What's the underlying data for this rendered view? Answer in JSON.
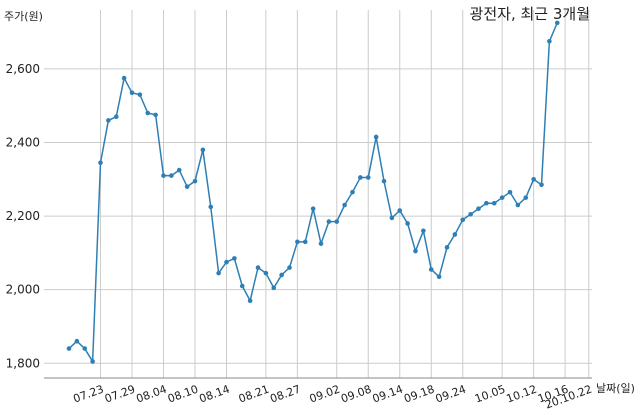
{
  "chart_data": {
    "type": "line",
    "title": "광전자, 최근 3개월",
    "xlabel": "날짜(일)",
    "ylabel": "주가(원)",
    "ylim": [
      1760,
      2760
    ],
    "yticks": [
      1800,
      2000,
      2200,
      2400,
      2600
    ],
    "ytick_labels": [
      "1,800",
      "2,000",
      "2,200",
      "2,400",
      "2,600"
    ],
    "xtick_labels": [
      "07.23",
      "07.29",
      "08.04",
      "08.10",
      "08.14",
      "08.21",
      "08.27",
      "09.02",
      "09.08",
      "09.14",
      "09.18",
      "09.24",
      "10.05",
      "10.12",
      "10.16",
      "20.10.22"
    ],
    "xtick_index": [
      4,
      8,
      12,
      16,
      20,
      25,
      29,
      34,
      38,
      42,
      46,
      50,
      55,
      59,
      63,
      66
    ],
    "grid": true,
    "color": "#2e7fb5",
    "series": [
      {
        "values": [
          1840,
          1860,
          1840,
          1805,
          2345,
          2460,
          2470,
          2575,
          2535,
          2530,
          2480,
          2475,
          2310,
          2310,
          2325,
          2280,
          2295,
          2380,
          2225,
          2045,
          2075,
          2085,
          2010,
          1970,
          2060,
          2045,
          2005,
          2040,
          2060,
          2130,
          2130,
          2220,
          2125,
          2185,
          2185,
          2230,
          2265,
          2305,
          2305,
          2415,
          2295,
          2195,
          2215,
          2180,
          2105,
          2160,
          2055,
          2035,
          2115,
          2150,
          2190,
          2205,
          2220,
          2235,
          2235,
          2250,
          2265,
          2230,
          2250,
          2300,
          2285,
          2675,
          2725
        ]
      }
    ]
  }
}
